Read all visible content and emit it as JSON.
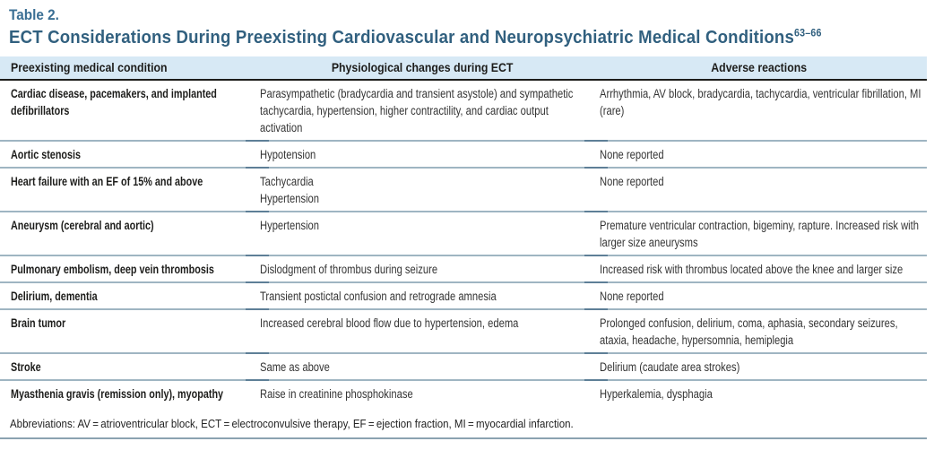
{
  "table_label": "Table 2.",
  "title": "ECT Considerations During Preexisting Cardiovascular and Neuropsychiatric Medical Conditions",
  "title_superscript": "63–66",
  "columns": [
    "Preexisting medical condition",
    "Physiological changes during ECT",
    "Adverse reactions"
  ],
  "rows": [
    {
      "condition": "Cardiac disease, pacemakers, and implanted defibrillators",
      "changes": "Parasympathetic (bradycardia and transient asystole) and sympathetic tachycardia, hypertension, higher contractility, and cardiac output activation",
      "reactions": "Arrhythmia, AV block, bradycardia, tachycardia, ventricular fibrillation, MI (rare)"
    },
    {
      "condition": "Aortic stenosis",
      "changes": "Hypotension",
      "reactions": "None reported"
    },
    {
      "condition": "Heart failure with an EF of 15% and above",
      "changes": "Tachycardia\nHypertension",
      "reactions": "None reported"
    },
    {
      "condition": "Aneurysm (cerebral and aortic)",
      "changes": "Hypertension",
      "reactions": "Premature ventricular contraction, bigeminy, rapture. Increased risk with larger size aneurysms"
    },
    {
      "condition": "Pulmonary embolism, deep vein thrombosis",
      "changes": "Dislodgment of thrombus during seizure",
      "reactions": "Increased risk with thrombus located above the knee and larger size"
    },
    {
      "condition": "Delirium, dementia",
      "changes": "Transient postictal confusion and retrograde amnesia",
      "reactions": "None reported"
    },
    {
      "condition": "Brain tumor",
      "changes": "Increased cerebral blood flow due to hypertension, edema",
      "reactions": "Prolonged confusion, delirium, coma, aphasia, secondary seizures, ataxia, headache, hypersomnia, hemiplegia"
    },
    {
      "condition": "Stroke",
      "changes": "Same as above",
      "reactions": "Delirium (caudate area strokes)"
    },
    {
      "condition": "Myasthenia gravis (remission only), myopathy",
      "changes": "Raise in creatinine phosphokinase",
      "reactions": "Hyperkalemia, dysphagia"
    }
  ],
  "footnote": "Abbreviations: AV = atrioventricular block, ECT = electroconvulsive therapy, EF = ejection fraction, MI = myocardial infarction.",
  "colors": {
    "table_label_blue": "#3a6f94",
    "title_blue": "#31607f",
    "band_bg": "#d7e9f5",
    "header_text": "#1d1d1b",
    "body_text": "#343434",
    "condition_text": "#1d1d1b",
    "black_rule": "#1d1d1b",
    "steel_rule": "#9fb5c2",
    "steel_dark": "#5e7f97",
    "bottom_rule": "#8ba2b1"
  }
}
